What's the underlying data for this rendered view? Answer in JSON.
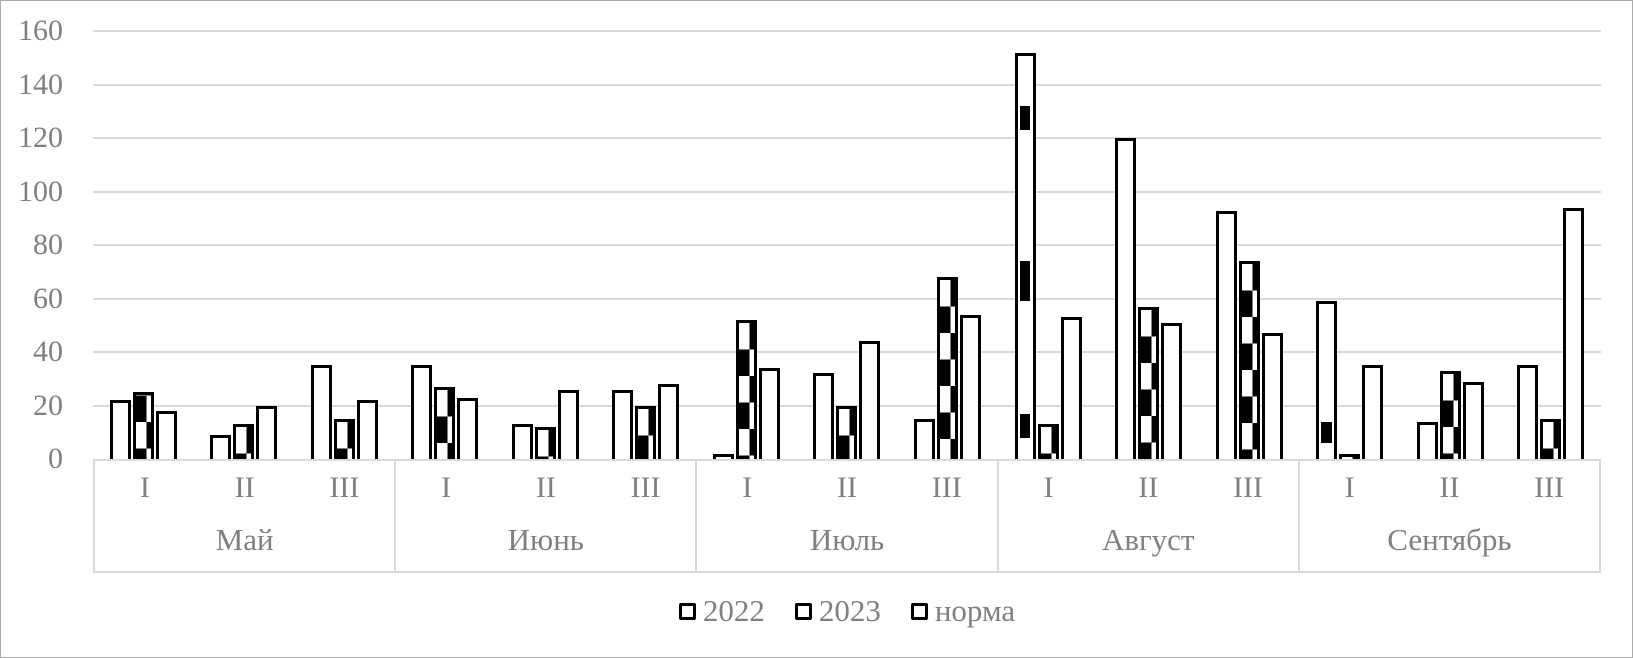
{
  "chart_data": {
    "type": "bar",
    "title": "",
    "xlabel": "",
    "ylabel": "",
    "ylim": [
      0,
      160
    ],
    "ytick_step": 20,
    "ytick_labels": [
      "0",
      "20",
      "40",
      "60",
      "80",
      "100",
      "120",
      "140",
      "160"
    ],
    "grid": true,
    "legend_position": "bottom-center",
    "months": [
      "Май",
      "Июнь",
      "Июль",
      "Август",
      "Сентябрь"
    ],
    "decade_labels": [
      "I",
      "II",
      "III"
    ],
    "categories": [
      "Май I",
      "Май II",
      "Май III",
      "Июнь I",
      "Июнь II",
      "Июнь III",
      "Июль I",
      "Июль II",
      "Июль III",
      "Август I",
      "Август II",
      "Август III",
      "Сентябрь I",
      "Сентябрь II",
      "Сентябрь III"
    ],
    "series": [
      {
        "name": "2022",
        "fill": "solid-white",
        "values": [
          22,
          9,
          35,
          35,
          13,
          26,
          2,
          32,
          15,
          152,
          120,
          93,
          59,
          14,
          35
        ]
      },
      {
        "name": "2023",
        "fill": "black-checker",
        "values": [
          25,
          13,
          15,
          27,
          12,
          20,
          52,
          20,
          68,
          13,
          57,
          74,
          2,
          33,
          15
        ],
        "white_first_pattern_indices": [
          0
        ]
      },
      {
        "name": "норма",
        "fill": "solid-white",
        "values": [
          18,
          20,
          22,
          23,
          26,
          28,
          34,
          44,
          54,
          53,
          51,
          47,
          35,
          29,
          94
        ]
      }
    ],
    "overlay_marks": [
      {
        "category_index": 9,
        "series": "2022",
        "value_spans": [
          [
            123,
            132
          ],
          [
            59,
            74
          ],
          [
            8,
            17
          ]
        ]
      },
      {
        "category_index": 12,
        "series": "2022",
        "value_spans": [
          [
            6,
            14
          ]
        ]
      }
    ],
    "colors": {
      "bar_fill": "#ffffff",
      "bar_border": "#000000",
      "pattern_black": "#000000",
      "grid_line": "#d9d9d9",
      "axis_text": "#808080",
      "frame_border": "#ababab",
      "background": "#ffffff"
    }
  },
  "legend": {
    "items": [
      {
        "label": "2022"
      },
      {
        "label": "2023"
      },
      {
        "label": "норма"
      }
    ]
  }
}
